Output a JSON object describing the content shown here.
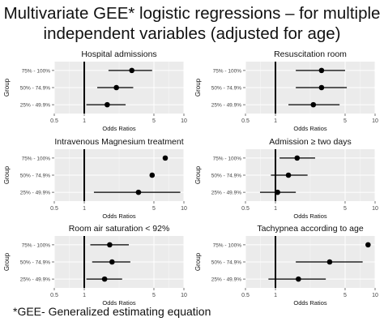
{
  "title_lines": [
    "Multivariate GEE* logistic regressions – for multiple",
    "independent variables (adjusted for age)"
  ],
  "footnote": "*GEE- Generalized estimating equation",
  "chart_data": [
    {
      "type": "scatter",
      "title": "Hospital admissions",
      "xlabel": "Odds Ratios",
      "ylabel": "Group",
      "x_scale": "log",
      "xlim": [
        0.5,
        10
      ],
      "x_ticks": [
        "0.5",
        "1",
        "5",
        "10"
      ],
      "reference_line": 1,
      "categories": [
        "75% - 100%",
        "50% - 74.9%",
        "25% - 49.9%"
      ],
      "estimates": [
        3.0,
        2.1,
        1.7
      ],
      "ci_low": [
        1.75,
        1.35,
        1.05
      ],
      "ci_high": [
        4.8,
        3.1,
        2.6
      ],
      "grid": true
    },
    {
      "type": "scatter",
      "title": "Resuscitation room",
      "xlabel": "Odds Ratios",
      "ylabel": "Group",
      "x_scale": "log",
      "xlim": [
        0.5,
        10
      ],
      "x_ticks": [
        "0.5",
        "1",
        "5",
        "10"
      ],
      "reference_line": 1,
      "categories": [
        "75% - 100%",
        "50% - 74.9%",
        "25% - 49.9%"
      ],
      "estimates": [
        2.9,
        2.9,
        2.4
      ],
      "ci_low": [
        1.6,
        1.6,
        1.35
      ],
      "ci_high": [
        5.0,
        5.2,
        4.4
      ],
      "grid": true
    },
    {
      "type": "scatter",
      "title": "Intravenous Magnesium treatment",
      "xlabel": "Odds Ratios",
      "ylabel": "Group",
      "x_scale": "log",
      "xlim": [
        0.5,
        10
      ],
      "x_ticks": [
        "0.5",
        "1",
        "5",
        "10"
      ],
      "reference_line": 1,
      "categories": [
        "75% - 100%",
        "50% - 74.9%",
        "25% - 49.9%"
      ],
      "estimates": [
        6.5,
        4.8,
        3.5
      ],
      "ci_low": [
        null,
        null,
        1.25
      ],
      "ci_high": [
        null,
        null,
        9.2
      ],
      "grid": true
    },
    {
      "type": "scatter",
      "title": "Admission ≥ two days",
      "xlabel": "Odds Ratios",
      "ylabel": "Group",
      "x_scale": "log",
      "xlim": [
        0.5,
        10
      ],
      "x_ticks": [
        "0.5",
        "1",
        "5",
        "10"
      ],
      "reference_line": 1,
      "categories": [
        "75% - 100%",
        "50% - 74.9%",
        "25% - 49.9%"
      ],
      "estimates": [
        1.65,
        1.35,
        1.05
      ],
      "ci_low": [
        1.1,
        0.9,
        0.7
      ],
      "ci_high": [
        2.5,
        2.1,
        1.6
      ],
      "grid": true
    },
    {
      "type": "scatter",
      "title": "Room air saturation < 92%",
      "xlabel": "Odds Ratios",
      "ylabel": "Group",
      "x_scale": "log",
      "xlim": [
        0.5,
        10
      ],
      "x_ticks": [
        "0.5",
        "1",
        "5",
        "10"
      ],
      "reference_line": 1,
      "categories": [
        "75% - 100%",
        "50% - 74.9%",
        "25% - 49.9%"
      ],
      "estimates": [
        1.8,
        1.9,
        1.6
      ],
      "ci_low": [
        1.15,
        1.2,
        1.05
      ],
      "ci_high": [
        2.8,
        2.9,
        2.4
      ],
      "grid": true
    },
    {
      "type": "scatter",
      "title": "Tachypnea according to age",
      "xlabel": "Odds Ratios",
      "ylabel": "Group",
      "x_scale": "log",
      "xlim": [
        0.5,
        10
      ],
      "x_ticks": [
        "0.5",
        "1",
        "5",
        "10"
      ],
      "reference_line": 1,
      "categories": [
        "75% - 100%",
        "50% - 74.9%",
        "25% - 49.9%"
      ],
      "estimates": [
        8.5,
        3.5,
        1.7
      ],
      "ci_low": [
        null,
        1.6,
        0.85
      ],
      "ci_high": [
        null,
        7.5,
        3.2
      ],
      "grid": true
    }
  ]
}
